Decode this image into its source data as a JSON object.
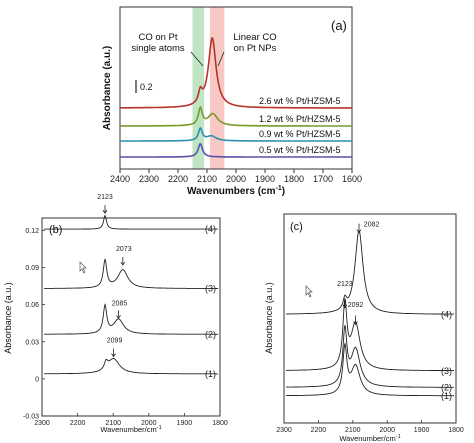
{
  "chart_data": [
    {
      "type": "line",
      "panel_label": "(a)",
      "xlabel": "Wavenumbers (cm",
      "xlabel_sup": "-1",
      "xlabel_close": ")",
      "ylabel": "Absorbance (a.u.)",
      "xlim": [
        2400,
        1600
      ],
      "x_ticks": [
        "2400",
        "2300",
        "2200",
        "2100",
        "2000",
        "1900",
        "1800",
        "1700",
        "1600"
      ],
      "scale_bar": "0.2",
      "bands": [
        {
          "label_lines": [
            "CO on Pt",
            "single atoms"
          ],
          "from": 2150,
          "to": 2110,
          "color": "#a9dcb2"
        },
        {
          "label_lines": [
            "Linear CO",
            "on Pt NPs"
          ],
          "from": 2090,
          "to": 2040,
          "color": "#f4b6b0"
        }
      ],
      "series": [
        {
          "name": "2.6 wt % Pt/HZSM-5",
          "color": "#b7342b",
          "peaks": [
            {
              "x": 2123,
              "h": 0.1,
              "w": 8
            },
            {
              "x": 2082,
              "h": 0.58,
              "w": 16
            }
          ]
        },
        {
          "name": "1.2 wt % Pt/HZSM-5",
          "color": "#7a9a2a",
          "peaks": [
            {
              "x": 2123,
              "h": 0.14,
              "w": 8
            },
            {
              "x": 2080,
              "h": 0.1,
              "w": 20
            }
          ]
        },
        {
          "name": "0.9 wt % Pt/HZSM-5",
          "color": "#2e8fb0",
          "peaks": [
            {
              "x": 2123,
              "h": 0.1,
              "w": 8
            },
            {
              "x": 2085,
              "h": 0.04,
              "w": 20
            }
          ]
        },
        {
          "name": "0.5 wt % Pt/HZSM-5",
          "color": "#5a52a8",
          "peaks": [
            {
              "x": 2123,
              "h": 0.11,
              "w": 9
            }
          ]
        }
      ]
    },
    {
      "type": "line",
      "panel_label": "(b)",
      "xlabel": "Wavenumber/cm",
      "xlabel_sup": "-1",
      "ylabel": "Absorbance (a.u.)",
      "xlim": [
        2300,
        1800
      ],
      "ylim": [
        -0.03,
        0.13
      ],
      "x_ticks": [
        "2300",
        "2200",
        "2100",
        "2000",
        "1900",
        "1800"
      ],
      "y_ticks": [
        "0.12",
        "0.09",
        "0.06",
        "0.03",
        "0",
        "-0.03"
      ],
      "annotations": [
        "2123",
        "2073",
        "2085",
        "2099"
      ],
      "series": [
        {
          "name": "(4)",
          "baseline": 0.121,
          "peaks": [
            {
              "x": 2123,
              "h": 0.011,
              "w": 5
            }
          ]
        },
        {
          "name": "(3)",
          "baseline": 0.073,
          "peaks": [
            {
              "x": 2123,
              "h": 0.022,
              "w": 6
            },
            {
              "x": 2073,
              "h": 0.015,
              "w": 17
            }
          ]
        },
        {
          "name": "(2)",
          "baseline": 0.036,
          "peaks": [
            {
              "x": 2123,
              "h": 0.022,
              "w": 6
            },
            {
              "x": 2085,
              "h": 0.012,
              "w": 17
            }
          ]
        },
        {
          "name": "(1)",
          "baseline": 0.004,
          "peaks": [
            {
              "x": 2120,
              "h": 0.006,
              "w": 6
            },
            {
              "x": 2099,
              "h": 0.012,
              "w": 20
            }
          ]
        }
      ]
    },
    {
      "type": "line",
      "panel_label": "(c)",
      "xlabel": "Wavenumber/cm",
      "xlabel_sup": "-1",
      "ylabel": "Absorbance (a.u.)",
      "xlim": [
        2300,
        1800
      ],
      "x_ticks": [
        "2300",
        "2200",
        "2100",
        "2000",
        "1900",
        "1800"
      ],
      "annotations": [
        "2082",
        "2123",
        "2092"
      ],
      "series": [
        {
          "name": "(4)",
          "baseline": 0.52,
          "peaks": [
            {
              "x": 2123,
              "h": 0.05,
              "w": 6
            },
            {
              "x": 2082,
              "h": 0.4,
              "w": 14
            }
          ]
        },
        {
          "name": "(3)",
          "baseline": 0.25,
          "peaks": [
            {
              "x": 2123,
              "h": 0.3,
              "w": 7
            },
            {
              "x": 2092,
              "h": 0.22,
              "w": 16
            }
          ]
        },
        {
          "name": "(2)",
          "baseline": 0.17,
          "peaks": [
            {
              "x": 2123,
              "h": 0.26,
              "w": 7
            },
            {
              "x": 2092,
              "h": 0.18,
              "w": 16
            }
          ]
        },
        {
          "name": "(1)",
          "baseline": 0.13,
          "peaks": [
            {
              "x": 2123,
              "h": 0.22,
              "w": 7
            },
            {
              "x": 2092,
              "h": 0.14,
              "w": 16
            }
          ]
        }
      ]
    }
  ]
}
